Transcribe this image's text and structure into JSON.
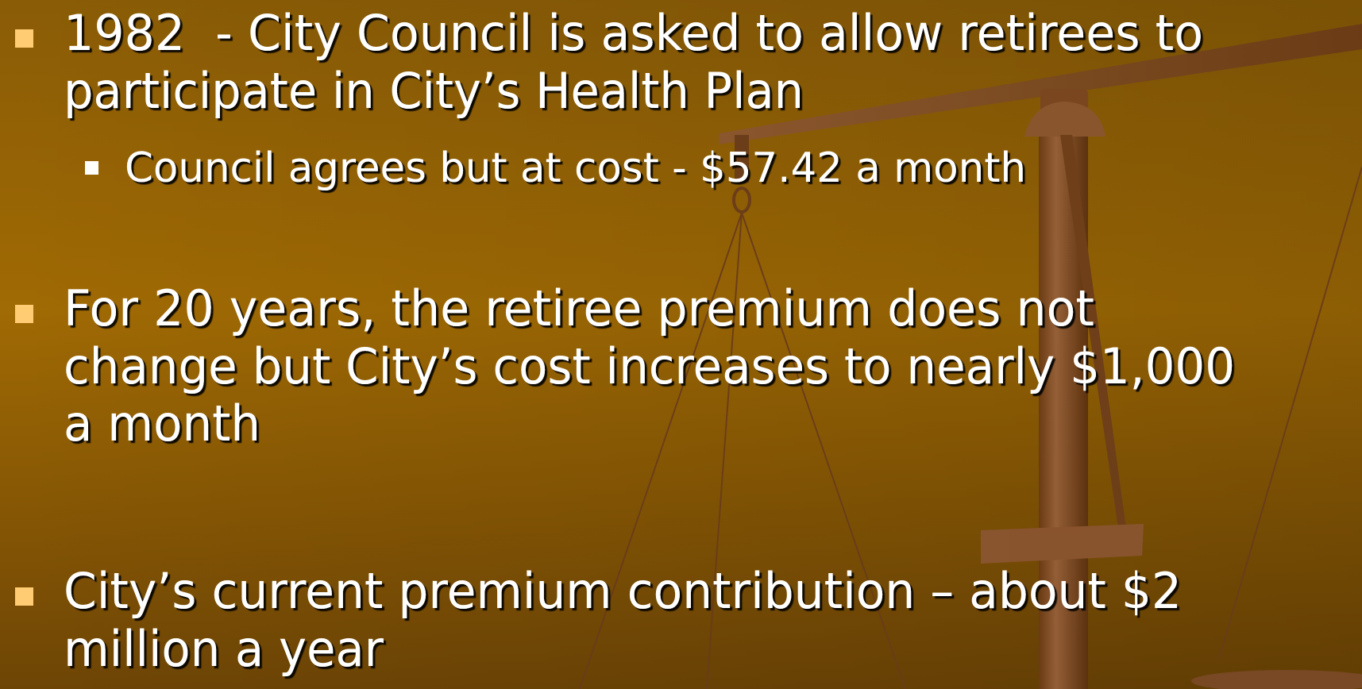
{
  "bullets": [
    {
      "lines": [
        "1982  - City Council is asked to allow retirees to",
        "participate in City’s Health Plan"
      ],
      "sub_bullets": [
        {
          "lines": [
            "Council agrees but at cost - $57.42 a month"
          ]
        }
      ]
    },
    {
      "lines": [
        "For 20 years, the retiree premium does not",
        "change but City’s cost increases to nearly $1,000",
        "a month"
      ]
    },
    {
      "lines": [
        "City’s current premium contribution – about $2",
        "million a year"
      ]
    }
  ]
}
